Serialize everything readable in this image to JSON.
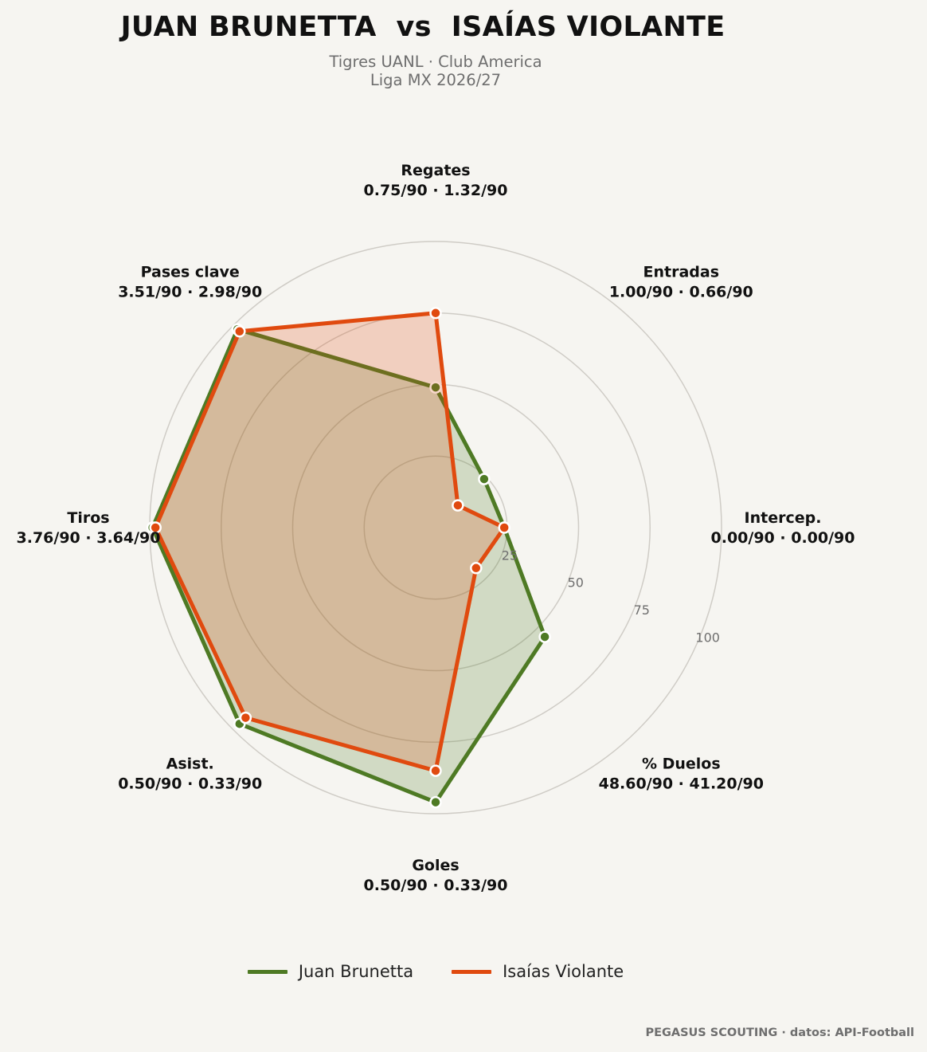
{
  "header": {
    "title": "JUAN BRUNETTA  vs  ISAÍAS VIOLANTE",
    "subtitle_line1": "Tigres UANL · Club America",
    "subtitle_line2": "Liga MX 2026/27"
  },
  "footer": {
    "credit": "PEGASUS SCOUTING · datos: API-Football"
  },
  "colors": {
    "player1": "#4e7a24",
    "player2": "#e04a0f",
    "grid": "#cfccc6",
    "background": "#f6f5f1"
  },
  "chart_data": {
    "type": "radar",
    "scale": {
      "min": 0,
      "max": 100,
      "ticks": [
        "25",
        "50",
        "75",
        "100"
      ]
    },
    "axes": [
      {
        "label": "Regates",
        "values_text": "0.75/90 · 1.32/90"
      },
      {
        "label": "Entradas",
        "values_text": "1.00/90 · 0.66/90"
      },
      {
        "label": "Intercep.",
        "values_text": "0.00/90 · 0.00/90"
      },
      {
        "label": "% Duelos",
        "values_text": "48.60/90 · 41.20/90"
      },
      {
        "label": "Goles",
        "values_text": "0.50/90 · 0.33/90"
      },
      {
        "label": "Asist.",
        "values_text": "0.50/90 · 0.33/90"
      },
      {
        "label": "Tiros",
        "values_text": "3.76/90 · 3.64/90"
      },
      {
        "label": "Pases clave",
        "values_text": "3.51/90 · 2.98/90"
      }
    ],
    "series": [
      {
        "name": "Juan Brunetta",
        "values": [
          49,
          24,
          24,
          54,
          96,
          97,
          99,
          98
        ]
      },
      {
        "name": "Isaías Violante",
        "values": [
          75,
          11,
          24,
          20,
          85,
          94,
          98,
          97
        ]
      }
    ],
    "legend_position": "bottom-center"
  }
}
